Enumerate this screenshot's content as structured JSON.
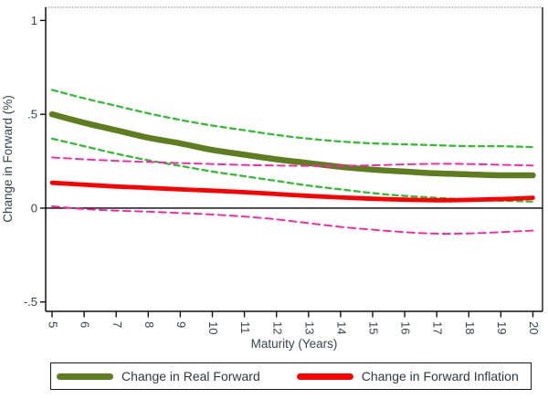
{
  "figure": {
    "kind": "stata-line-chart",
    "background": "#ffffff",
    "text_color": "#39434e",
    "axis_color": "#111111",
    "plot_border_top_color": "#999999",
    "plot_border_right_color": "#4d4d4d"
  },
  "legend": {
    "items": [
      {
        "label": "Change in Real Forward",
        "color": "#5e7d1f"
      },
      {
        "label": "Change in Forward Inflation",
        "color": "#fe0000"
      }
    ]
  },
  "chart_data": {
    "type": "line",
    "title": "",
    "xlabel": "Maturity (Years)",
    "ylabel": "Change in Forward (%)",
    "x": [
      5,
      6,
      7,
      8,
      9,
      10,
      11,
      12,
      13,
      14,
      15,
      16,
      17,
      18,
      19,
      20
    ],
    "x_tick_labels": [
      "5",
      "6",
      "7",
      "8",
      "9",
      "10",
      "11",
      "12",
      "13",
      "14",
      "15",
      "16",
      "17",
      "18",
      "19",
      "20"
    ],
    "y_ticks": [
      {
        "label": "1",
        "value": 1.0
      },
      {
        "label": ".5",
        "value": 0.5
      },
      {
        "label": "0",
        "value": 0.0
      },
      {
        "label": "-.5",
        "value": -0.5
      }
    ],
    "xlim": [
      4.8,
      20.3
    ],
    "ylim": [
      -0.55,
      1.07
    ],
    "grid": false,
    "zero_line": 0,
    "legend_position": "bottom",
    "series": [
      {
        "name": "Change in Real Forward",
        "role": "estimate",
        "color": "#5e7d1f",
        "width": 6.5,
        "dash": "",
        "values": [
          0.5,
          0.455,
          0.415,
          0.375,
          0.345,
          0.31,
          0.285,
          0.26,
          0.24,
          0.22,
          0.205,
          0.195,
          0.185,
          0.18,
          0.175,
          0.175
        ]
      },
      {
        "name": "Real Forward CI upper",
        "role": "ci",
        "color": "#2fbf2f",
        "width": 2.3,
        "dash": "6 4.5",
        "values": [
          0.63,
          0.585,
          0.545,
          0.505,
          0.47,
          0.44,
          0.415,
          0.39,
          0.37,
          0.355,
          0.345,
          0.34,
          0.335,
          0.33,
          0.33,
          0.325
        ]
      },
      {
        "name": "Real Forward CI lower",
        "role": "ci",
        "color": "#2fbf2f",
        "width": 2.3,
        "dash": "6 4.5",
        "values": [
          0.37,
          0.33,
          0.29,
          0.255,
          0.225,
          0.195,
          0.17,
          0.145,
          0.12,
          0.1,
          0.08,
          0.065,
          0.055,
          0.045,
          0.04,
          0.035
        ]
      },
      {
        "name": "Change in Forward Inflation",
        "role": "estimate",
        "color": "#fe0000",
        "width": 4.8,
        "dash": "",
        "values": [
          0.135,
          0.125,
          0.115,
          0.108,
          0.1,
          0.093,
          0.085,
          0.075,
          0.065,
          0.057,
          0.05,
          0.045,
          0.042,
          0.044,
          0.048,
          0.055
        ]
      },
      {
        "name": "Forward Inflation CI upper",
        "role": "ci",
        "color": "#ff1faa",
        "width": 1.9,
        "dash": "8 5",
        "values": [
          0.27,
          0.26,
          0.252,
          0.246,
          0.24,
          0.235,
          0.23,
          0.227,
          0.225,
          0.225,
          0.228,
          0.233,
          0.236,
          0.235,
          0.231,
          0.227
        ]
      },
      {
        "name": "Forward Inflation CI lower",
        "role": "ci",
        "color": "#ff1faa",
        "width": 1.9,
        "dash": "8 5",
        "values": [
          0.01,
          -0.005,
          -0.013,
          -0.019,
          -0.026,
          -0.034,
          -0.045,
          -0.06,
          -0.08,
          -0.1,
          -0.115,
          -0.128,
          -0.136,
          -0.135,
          -0.128,
          -0.12
        ]
      }
    ]
  }
}
